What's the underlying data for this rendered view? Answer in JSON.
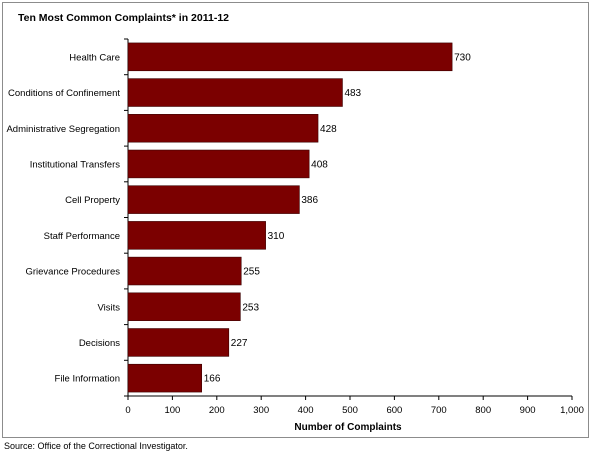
{
  "chart_data": {
    "type": "bar",
    "orientation": "horizontal",
    "title": "Ten Most Common Complaints* in 2011-12",
    "xlabel": "Number of Complaints",
    "ylabel": "",
    "categories": [
      "Health Care",
      "Conditions of Confinement",
      "Administrative Segregation",
      "Institutional Transfers",
      "Cell Property",
      "Staff Performance",
      "Grievance Procedures",
      "Visits",
      "Decisions",
      "File Information"
    ],
    "values": [
      730,
      483,
      428,
      408,
      386,
      310,
      255,
      253,
      227,
      166
    ],
    "xlim": [
      0,
      1000
    ],
    "xticks": [
      0,
      100,
      200,
      300,
      400,
      500,
      600,
      700,
      800,
      900,
      1000
    ],
    "xtick_labels": [
      "0",
      "100",
      "200",
      "300",
      "400",
      "500",
      "600",
      "700",
      "800",
      "900",
      "1,000"
    ],
    "bar_color": "#7b0000",
    "grid": false,
    "legend": "none"
  },
  "source": "Source:  Office of the Correctional Investigator."
}
